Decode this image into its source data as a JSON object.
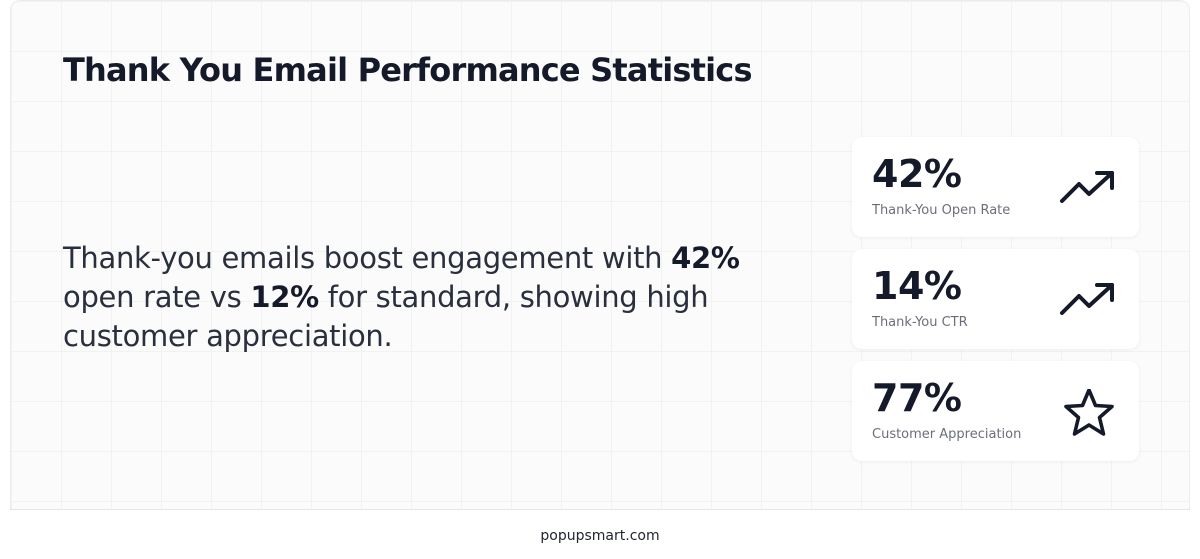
{
  "header": {
    "title": "Thank You Email Performance Statistics"
  },
  "description": {
    "part1": "Thank-you emails boost engagement with ",
    "highlight1": "42%",
    "part2": " open rate vs ",
    "highlight2": "12%",
    "part3": " for standard, showing high customer appreciation."
  },
  "stats": [
    {
      "value": "42%",
      "label": "Thank-You Open Rate",
      "icon": "trending-up-icon"
    },
    {
      "value": "14%",
      "label": "Thank-You CTR",
      "icon": "trending-up-icon"
    },
    {
      "value": "77%",
      "label": "Customer Appreciation",
      "icon": "star-icon"
    }
  ],
  "footer": {
    "text": "popupsmart.com"
  },
  "colors": {
    "text_primary": "#141a2a",
    "text_secondary": "#6b6f7a",
    "background": "#fbfbfb",
    "card": "#ffffff"
  }
}
